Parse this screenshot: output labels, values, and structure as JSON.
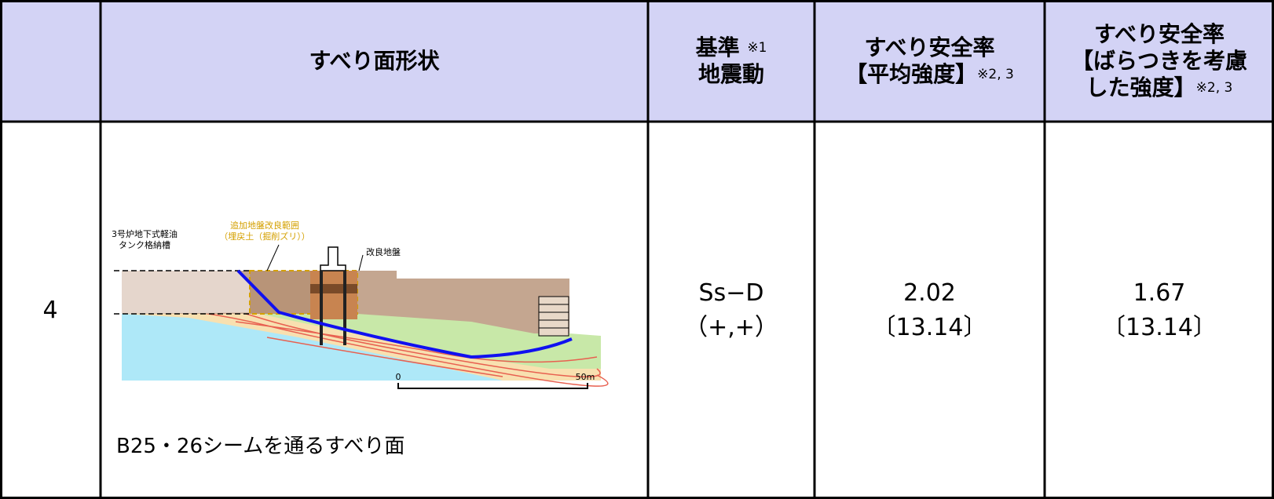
{
  "header": {
    "shape": "すべり面形状",
    "ground_motion": {
      "line1": "基準",
      "note": "※1",
      "line2": "地震動"
    },
    "mean_strength": {
      "line1": "すべり安全率",
      "line2": "【平均強度】",
      "note": "※2, 3"
    },
    "varied_strength": {
      "line1": "すべり安全率",
      "line2": "【ばらつきを考慮",
      "line3": "した強度】",
      "note": "※2, 3"
    }
  },
  "row": {
    "no": "4",
    "figure": {
      "tank_label_1": "3号炉地下式軽油",
      "tank_label_2": "タンク格納槽",
      "improve_label_1": "追加地盤改良範囲",
      "improve_label_2": "（埋戻土（掘削ズリ））",
      "improved_ground": "改良地盤",
      "scale_start": "0",
      "scale_end": "50m"
    },
    "caption": "B25・26シームを通るすべり面",
    "motion_1": "Ss−D",
    "motion_2": "（+,+）",
    "mean_value": "2.02",
    "mean_ratio": "〔13.14〕",
    "varied_value": "1.67",
    "varied_ratio": "〔13.14〕"
  }
}
